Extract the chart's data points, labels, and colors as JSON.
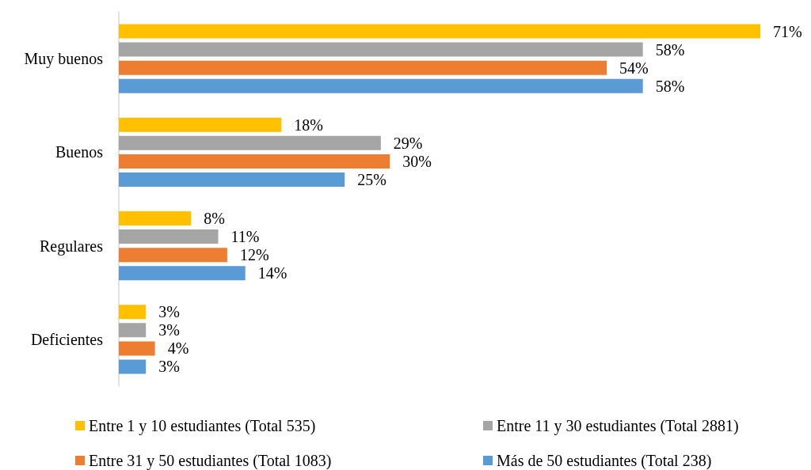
{
  "chart_data": {
    "type": "bar",
    "orientation": "horizontal",
    "categories": [
      "Muy buenos",
      "Buenos",
      "Regulares",
      "Deficientes"
    ],
    "series": [
      {
        "name": "Entre 1 y 10 estudiantes (Total 535)",
        "color": "#ffc000",
        "values": [
          71,
          18,
          8,
          3
        ],
        "value_labels": [
          "71%",
          "18%",
          "8%",
          "3%"
        ]
      },
      {
        "name": "Entre 11 y 30 estudiantes (Total 2881)",
        "color": "#a5a5a5",
        "values": [
          58,
          29,
          11,
          3
        ],
        "value_labels": [
          "58%",
          "29%",
          "11%",
          "3%"
        ]
      },
      {
        "name": "Entre 31 y 50 estudiantes (Total 1083)",
        "color": "#ed7d31",
        "values": [
          54,
          30,
          12,
          4
        ],
        "value_labels": [
          "54%",
          "30%",
          "12%",
          "4%"
        ]
      },
      {
        "name": "Más de 50 estudiantes (Total 238)",
        "color": "#5b9bd5",
        "values": [
          58,
          25,
          14,
          3
        ],
        "value_labels": [
          "58%",
          "25%",
          "14%",
          "3%"
        ]
      }
    ],
    "legend": "bottom"
  }
}
